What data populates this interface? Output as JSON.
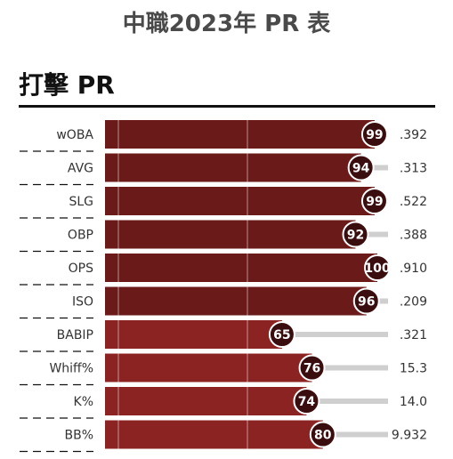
{
  "page": {
    "title": "中職2023年 PR 表",
    "section_title": "打擊 PR"
  },
  "colors": {
    "bar_high": "#6b1a1a",
    "bar_low": "#8b2323",
    "track": "#cfcfcf",
    "circle": "#3a0e0e",
    "separator": "#111111"
  },
  "chart_data": {
    "type": "bar",
    "orientation": "horizontal",
    "title": "打擊 PR",
    "xlim": [
      0,
      100
    ],
    "categories": [
      "wOBA",
      "AVG",
      "SLG",
      "OBP",
      "OPS",
      "ISO",
      "BABIP",
      "Whiff%",
      "K%",
      "BB%"
    ],
    "series": [
      {
        "values": [
          99,
          94,
          99,
          92,
          100,
          96,
          65,
          76,
          74,
          80
        ],
        "stat_values": [
          ".392",
          ".313",
          ".522",
          ".388",
          ".910",
          ".209",
          ".321",
          "15.3",
          "14.0",
          "9.932"
        ]
      }
    ]
  }
}
